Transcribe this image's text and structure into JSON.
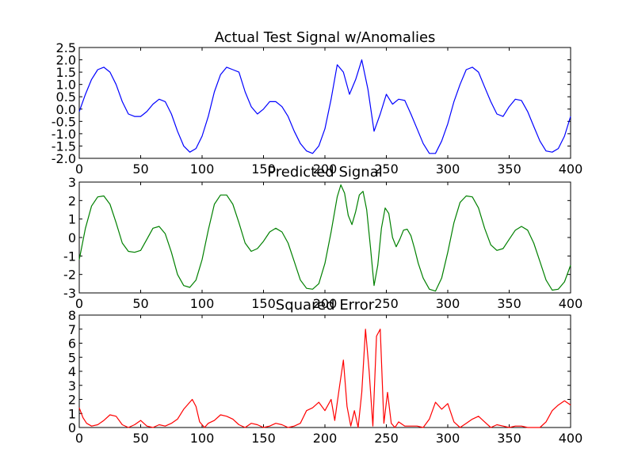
{
  "chart_data": [
    {
      "type": "line",
      "title": "Actual Test Signal w/Anomalies",
      "xlim": [
        0,
        400
      ],
      "ylim": [
        -2.0,
        2.5
      ],
      "xticks": [
        "0",
        "50",
        "100",
        "150",
        "200",
        "250",
        "300",
        "350",
        "400"
      ],
      "yticks": [
        "-2.0",
        "-1.5",
        "-1.0",
        "-0.5",
        "0.0",
        "0.5",
        "1.0",
        "1.5",
        "2.0",
        "2.5"
      ],
      "series": [
        {
          "color": "#0000ff",
          "x": [
            0,
            5,
            10,
            15,
            20,
            25,
            30,
            35,
            40,
            45,
            50,
            55,
            60,
            65,
            70,
            75,
            80,
            85,
            90,
            95,
            100,
            105,
            110,
            115,
            120,
            125,
            130,
            135,
            140,
            145,
            150,
            155,
            160,
            165,
            170,
            175,
            180,
            185,
            190,
            195,
            200,
            205,
            210,
            215,
            220,
            225,
            230,
            235,
            240,
            245,
            250,
            255,
            260,
            265,
            270,
            275,
            280,
            285,
            290,
            295,
            300,
            305,
            310,
            315,
            320,
            325,
            330,
            335,
            340,
            345,
            350,
            355,
            360,
            365,
            370,
            375,
            380,
            385,
            390,
            395,
            400
          ],
          "y": [
            -0.1,
            0.6,
            1.2,
            1.6,
            1.7,
            1.5,
            1.0,
            0.3,
            -0.2,
            -0.3,
            -0.3,
            -0.1,
            0.2,
            0.4,
            0.3,
            -0.2,
            -0.9,
            -1.5,
            -1.75,
            -1.6,
            -1.1,
            -0.3,
            0.7,
            1.4,
            1.7,
            1.6,
            1.5,
            0.7,
            0.1,
            -0.2,
            0.0,
            0.3,
            0.3,
            0.1,
            -0.3,
            -0.9,
            -1.4,
            -1.7,
            -1.8,
            -1.5,
            -0.8,
            0.4,
            1.8,
            1.5,
            0.6,
            1.2,
            2.0,
            0.8,
            -0.9,
            -0.2,
            0.6,
            0.2,
            0.4,
            0.35,
            -0.2,
            -0.8,
            -1.4,
            -1.8,
            -1.8,
            -1.3,
            -0.6,
            0.3,
            1.0,
            1.6,
            1.7,
            1.5,
            0.9,
            0.3,
            -0.2,
            -0.3,
            0.1,
            0.4,
            0.35,
            -0.1,
            -0.7,
            -1.3,
            -1.7,
            -1.75,
            -1.6,
            -1.1,
            -0.3
          ]
        }
      ]
    },
    {
      "type": "line",
      "title": "Predicted Signal",
      "xlim": [
        0,
        400
      ],
      "ylim": [
        -3,
        3
      ],
      "xticks": [
        "0",
        "50",
        "100",
        "150",
        "200",
        "250",
        "300",
        "350",
        "400"
      ],
      "yticks": [
        "-3",
        "-2",
        "-1",
        "0",
        "1",
        "2",
        "3"
      ],
      "series": [
        {
          "color": "#008000",
          "x": [
            0,
            5,
            10,
            15,
            20,
            25,
            30,
            35,
            40,
            45,
            50,
            55,
            60,
            65,
            70,
            75,
            80,
            85,
            90,
            95,
            100,
            105,
            110,
            115,
            120,
            125,
            130,
            135,
            140,
            145,
            150,
            155,
            160,
            165,
            170,
            175,
            180,
            185,
            190,
            195,
            200,
            205,
            210,
            213,
            216,
            219,
            222,
            225,
            228,
            231,
            234,
            237,
            240,
            243,
            246,
            249,
            252,
            255,
            258,
            261,
            264,
            267,
            270,
            273,
            276,
            280,
            285,
            290,
            295,
            300,
            305,
            310,
            315,
            320,
            325,
            330,
            335,
            340,
            345,
            350,
            355,
            360,
            365,
            370,
            375,
            380,
            385,
            390,
            395,
            400
          ],
          "y": [
            -1.2,
            0.5,
            1.7,
            2.2,
            2.25,
            1.8,
            0.8,
            -0.3,
            -0.75,
            -0.8,
            -0.7,
            -0.1,
            0.5,
            0.6,
            0.2,
            -0.8,
            -2.0,
            -2.6,
            -2.7,
            -2.3,
            -1.2,
            0.4,
            1.8,
            2.3,
            2.3,
            1.8,
            0.8,
            -0.3,
            -0.75,
            -0.6,
            -0.2,
            0.3,
            0.5,
            0.3,
            -0.3,
            -1.3,
            -2.3,
            -2.75,
            -2.8,
            -2.5,
            -1.4,
            0.3,
            2.2,
            2.85,
            2.4,
            1.2,
            0.7,
            1.4,
            2.3,
            2.5,
            1.5,
            -0.5,
            -2.6,
            -1.5,
            0.5,
            1.6,
            1.3,
            0.0,
            -0.5,
            -0.1,
            0.4,
            0.45,
            0.1,
            -0.6,
            -1.4,
            -2.2,
            -2.8,
            -2.9,
            -2.2,
            -0.8,
            0.8,
            1.9,
            2.25,
            2.2,
            1.6,
            0.5,
            -0.4,
            -0.7,
            -0.6,
            -0.1,
            0.4,
            0.6,
            0.4,
            -0.3,
            -1.3,
            -2.3,
            -2.85,
            -2.8,
            -2.4,
            -1.5
          ]
        }
      ]
    },
    {
      "type": "line",
      "title": "Squared Error",
      "xlim": [
        0,
        400
      ],
      "ylim": [
        0,
        8
      ],
      "xticks": [
        "0",
        "50",
        "100",
        "150",
        "200",
        "250",
        "300",
        "350",
        "400"
      ],
      "yticks": [
        "0",
        "1",
        "2",
        "3",
        "4",
        "5",
        "6",
        "7",
        "8"
      ],
      "series": [
        {
          "color": "#ff0000",
          "x": [
            0,
            3,
            6,
            10,
            15,
            20,
            25,
            30,
            35,
            40,
            45,
            50,
            55,
            60,
            65,
            70,
            75,
            80,
            85,
            88,
            92,
            95,
            98,
            102,
            105,
            110,
            115,
            120,
            125,
            130,
            135,
            140,
            145,
            150,
            155,
            160,
            165,
            170,
            175,
            180,
            185,
            190,
            195,
            200,
            205,
            208,
            212,
            215,
            218,
            221,
            224,
            227,
            230,
            233,
            236,
            239,
            242,
            245,
            248,
            251,
            254,
            257,
            260,
            265,
            270,
            275,
            280,
            285,
            290,
            295,
            300,
            305,
            310,
            315,
            320,
            325,
            330,
            335,
            340,
            345,
            350,
            355,
            360,
            365,
            370,
            375,
            380,
            385,
            390,
            395,
            400
          ],
          "y": [
            1.4,
            0.7,
            0.3,
            0.1,
            0.2,
            0.5,
            0.9,
            0.8,
            0.2,
            0.0,
            0.2,
            0.5,
            0.1,
            0.0,
            0.2,
            0.1,
            0.3,
            0.6,
            1.3,
            1.6,
            2.0,
            1.5,
            0.4,
            0.0,
            0.3,
            0.5,
            0.9,
            0.8,
            0.6,
            0.2,
            0.0,
            0.3,
            0.2,
            0.0,
            0.1,
            0.3,
            0.2,
            0.0,
            0.1,
            0.3,
            1.2,
            1.4,
            1.8,
            1.2,
            2.0,
            0.5,
            3.0,
            4.8,
            1.5,
            0.1,
            1.2,
            0.0,
            2.5,
            7.0,
            4.0,
            0.1,
            6.5,
            7.0,
            0.3,
            2.5,
            0.3,
            0.0,
            0.4,
            0.1,
            0.1,
            0.1,
            0.0,
            0.6,
            1.8,
            1.3,
            1.7,
            0.4,
            0.0,
            0.3,
            0.6,
            0.8,
            0.4,
            0.0,
            0.2,
            0.1,
            0.0,
            0.1,
            0.1,
            0.0,
            0.0,
            0.0,
            0.4,
            1.2,
            1.6,
            1.9,
            1.6
          ]
        }
      ]
    }
  ]
}
